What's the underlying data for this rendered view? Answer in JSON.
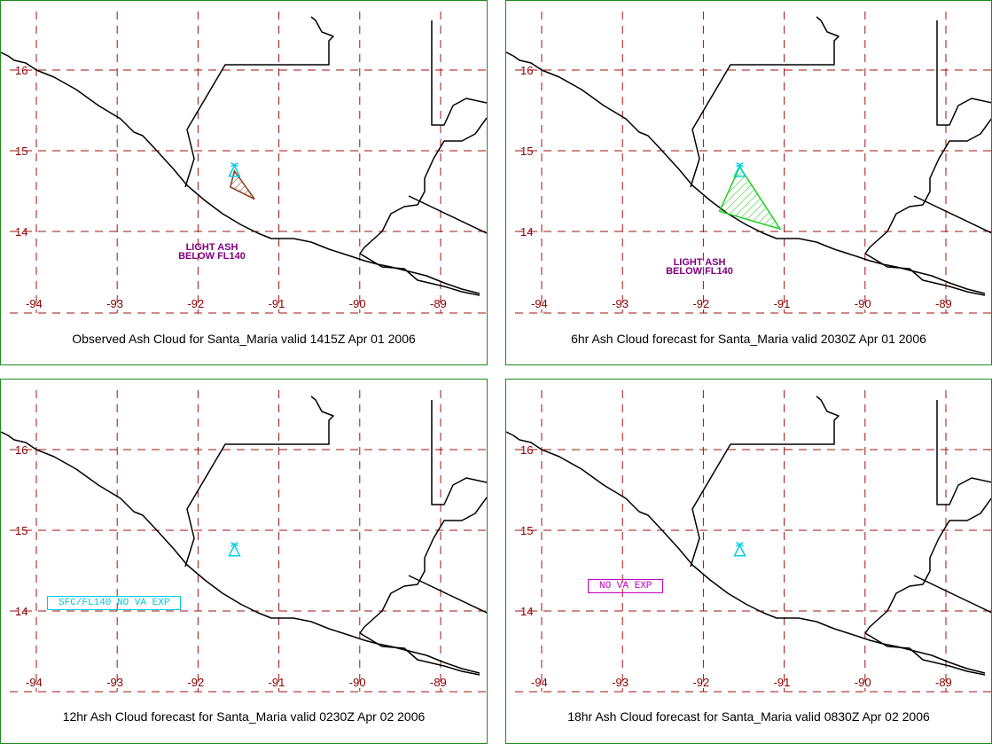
{
  "map": {
    "lon_ticks": [
      "-94",
      "-93",
      "-92",
      "-91",
      "-90",
      "-89"
    ],
    "lat_ticks": [
      "16",
      "15",
      "14"
    ],
    "colors": {
      "panel_border": "#1f8a1f",
      "grid": "#a01010",
      "tick_labels": "#8b0000",
      "coastline": "#000000",
      "volcano_marker": "#00d0e0"
    }
  },
  "volcano": {
    "name": "Santa_Maria",
    "lon": -91.55,
    "lat": 14.75,
    "icon": "volcano-icon"
  },
  "panels": [
    {
      "caption": "Observed Ash Cloud for Santa_Maria valid 1415Z Apr 01 2006",
      "ash_polygon": {
        "lonlat": [
          [
            -91.55,
            14.75
          ],
          [
            -91.3,
            14.4
          ],
          [
            -91.6,
            14.55
          ]
        ],
        "color": "#8b3a1a",
        "hatched": true
      },
      "label_lines": [
        "LIGHT ASH",
        "BELOW FL140"
      ],
      "label_color": "#800080",
      "box_text": null
    },
    {
      "caption": "6hr Ash Cloud forecast for Santa_Maria valid 2030Z Apr 01 2006",
      "ash_polygon": {
        "lonlat": [
          [
            -91.55,
            14.8
          ],
          [
            -91.05,
            14.03
          ],
          [
            -91.8,
            14.25
          ]
        ],
        "color": "#22cc22",
        "hatched": true
      },
      "label_lines": [
        "LIGHT ASH",
        "BELOW FL140"
      ],
      "label_color": "#800080",
      "box_text": null
    },
    {
      "caption": "12hr Ash Cloud forecast for Santa_Maria valid 0230Z Apr 02 2006",
      "ash_polygon": null,
      "label_lines": [],
      "box_text": "SFC/FL140 NO VA EXP",
      "box_color": "#00c8d8"
    },
    {
      "caption": "18hr Ash Cloud forecast for Santa_Maria valid 0830Z Apr 02 2006",
      "ash_polygon": null,
      "label_lines": [],
      "box_text": "NO VA EXP",
      "box_color": "#c000c0"
    }
  ]
}
